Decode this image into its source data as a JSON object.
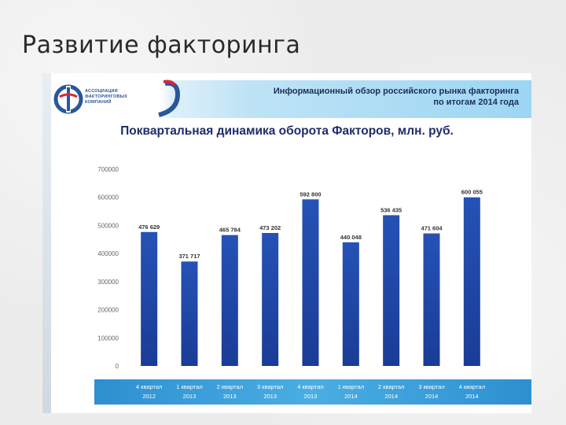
{
  "slide": {
    "title": "Развитие факторинга"
  },
  "header": {
    "org_lines": [
      "Ассоциация",
      "Факторинговых",
      "Компаний"
    ],
    "report_line1": "Информационный обзор российского рынка факторинга",
    "report_line2": "по итогам 2014 года"
  },
  "colors": {
    "bar_top": "#2552b6",
    "bar_bottom": "#1a3c96",
    "axis_band": "#3fa3dc",
    "brand_blue": "#29579b",
    "brand_red": "#d9263a"
  },
  "icons": {
    "logo": "afk-logo-icon",
    "accent": "swoosh-accent-icon"
  },
  "chart_data": {
    "type": "bar",
    "title": "Поквартальная динамика оборота Факторов, млн. руб.",
    "xlabel": "",
    "ylabel": "",
    "ylim": [
      0,
      700000
    ],
    "yticks": [
      0,
      100000,
      200000,
      300000,
      400000,
      500000,
      600000,
      700000
    ],
    "ytick_labels": [
      "0",
      "100000",
      "200000",
      "300000",
      "400000",
      "500000",
      "600000",
      "700000"
    ],
    "grid": false,
    "legend": "none",
    "categories": [
      [
        "4 квартал",
        "2012"
      ],
      [
        "1 квартал",
        "2013"
      ],
      [
        "2 квартал",
        "2013"
      ],
      [
        "3 квартал",
        "2013"
      ],
      [
        "4 квартал",
        "2013"
      ],
      [
        "1 квартал",
        "2014"
      ],
      [
        "2 квартал",
        "2014"
      ],
      [
        "3 квартал",
        "2014"
      ],
      [
        "4 квартал",
        "2014"
      ]
    ],
    "values": [
      476629,
      371717,
      465784,
      473202,
      592800,
      440048,
      536435,
      471604,
      600055
    ],
    "value_labels": [
      "476 629",
      "371 717",
      "465 784",
      "473 202",
      "592 800",
      "440 048",
      "536 435",
      "471 604",
      "600 055"
    ]
  }
}
